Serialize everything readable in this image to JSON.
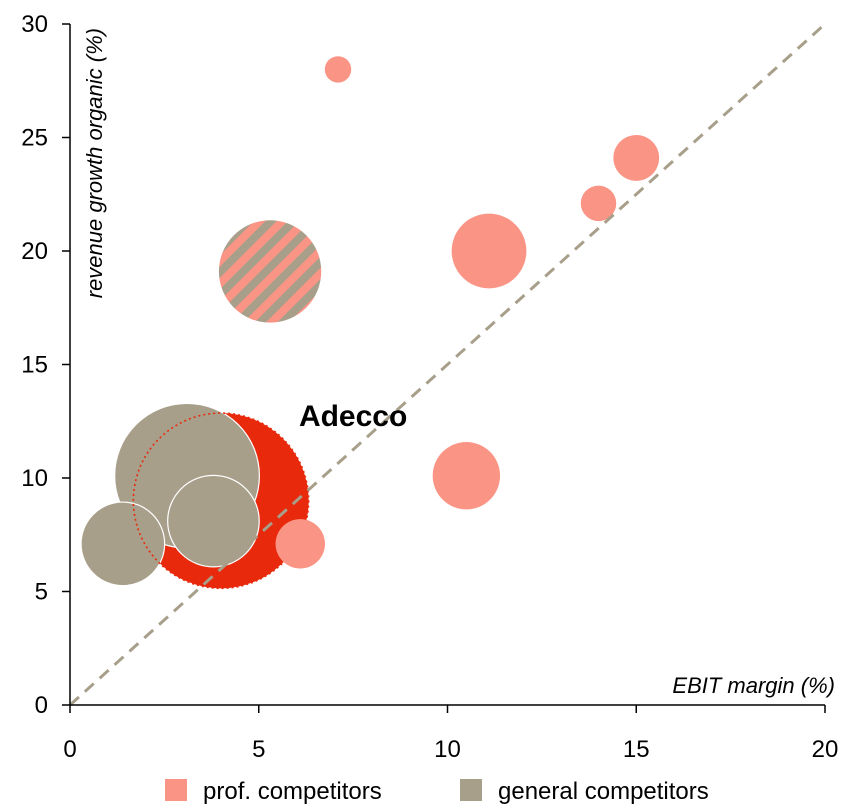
{
  "chart_data": {
    "type": "scatter",
    "xlabel": "EBIT margin (%)",
    "ylabel": "revenue growth organic (%)",
    "xlim": [
      0,
      20
    ],
    "ylim": [
      0,
      30
    ],
    "xticks": [
      "0",
      "5",
      "10",
      "15",
      "20"
    ],
    "yticks": [
      "0",
      "5",
      "10",
      "15",
      "20",
      "25",
      "30"
    ],
    "reference_line": "y = 1.5x (dashed diagonal)",
    "legend": {
      "placement": "bottom",
      "entries": [
        {
          "label": "prof. competitors",
          "color": "#FA9485"
        },
        {
          "label": "general competitors",
          "color": "#A89F8B"
        }
      ]
    },
    "annotations": [
      {
        "text": "Adecco",
        "x": 7.5,
        "y": 12.3
      }
    ],
    "series": [
      {
        "name": "prof. competitors",
        "color": "#FA9485",
        "points": [
          {
            "x": 7.1,
            "y": 28,
            "size": 1
          },
          {
            "x": 15,
            "y": 24.1,
            "size": 3
          },
          {
            "x": 14,
            "y": 22.1,
            "size": 1.8
          },
          {
            "x": 11.1,
            "y": 20,
            "size": 8
          },
          {
            "x": 10.5,
            "y": 10.1,
            "size": 6.5
          },
          {
            "x": 6.1,
            "y": 7.1,
            "size": 3.5
          }
        ]
      },
      {
        "name": "general competitors",
        "color": "#A89F8B",
        "points": [
          {
            "x": 3.1,
            "y": 10.1,
            "size": 30
          },
          {
            "x": 3.8,
            "y": 8.1,
            "size": 12
          },
          {
            "x": 1.4,
            "y": 7.1,
            "size": 10
          }
        ]
      },
      {
        "name": "Adecco",
        "color": "#E8290B",
        "points": [
          {
            "x": 4,
            "y": 9,
            "size": 44
          }
        ]
      },
      {
        "name": "mixed",
        "colors": [
          "#FA9485",
          "#A89F8B"
        ],
        "points": [
          {
            "x": 5.3,
            "y": 19.1,
            "size": 15
          }
        ]
      }
    ]
  }
}
